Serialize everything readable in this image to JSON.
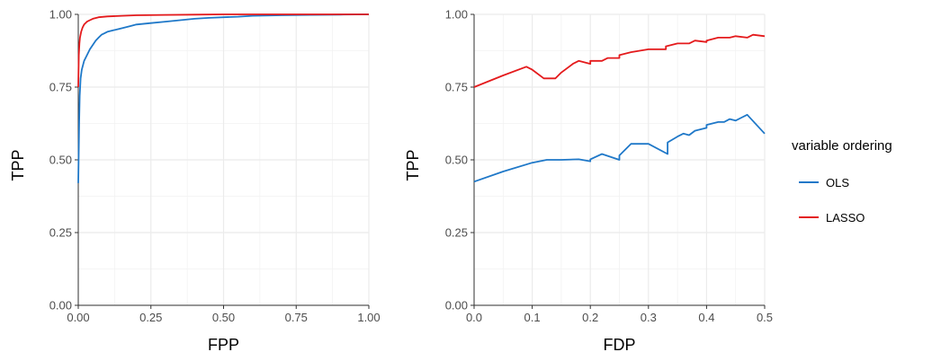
{
  "chart_data": [
    {
      "type": "line",
      "xlabel": "FPP",
      "ylabel": "TPP",
      "xlim": [
        0,
        1
      ],
      "ylim": [
        0,
        1
      ],
      "x_ticks": [
        "0.00",
        "0.25",
        "0.50",
        "0.75",
        "1.00"
      ],
      "y_ticks": [
        "0.00",
        "0.25",
        "0.50",
        "0.75",
        "1.00"
      ],
      "grid": true,
      "series": [
        {
          "name": "OLS",
          "color": "#1f78c8",
          "x": [
            0,
            0.003,
            0.005,
            0.008,
            0.012,
            0.02,
            0.03,
            0.04,
            0.05,
            0.06,
            0.07,
            0.08,
            0.09,
            0.1,
            0.12,
            0.14,
            0.16,
            0.18,
            0.2,
            0.25,
            0.3,
            0.35,
            0.4,
            0.45,
            0.5,
            0.55,
            0.6,
            0.7,
            0.8,
            0.9,
            1.0
          ],
          "y": [
            0.42,
            0.63,
            0.72,
            0.78,
            0.81,
            0.84,
            0.86,
            0.88,
            0.895,
            0.91,
            0.92,
            0.93,
            0.935,
            0.94,
            0.945,
            0.95,
            0.955,
            0.96,
            0.965,
            0.97,
            0.975,
            0.98,
            0.985,
            0.988,
            0.99,
            0.992,
            0.995,
            0.997,
            0.998,
            0.999,
            1.0
          ]
        },
        {
          "name": "LASSO",
          "color": "#e41a1c",
          "x": [
            0,
            0.002,
            0.004,
            0.006,
            0.01,
            0.015,
            0.02,
            0.03,
            0.04,
            0.05,
            0.07,
            0.1,
            0.15,
            0.2,
            0.3,
            0.4,
            0.5,
            0.6,
            0.7,
            1.0
          ],
          "y": [
            0.75,
            0.86,
            0.9,
            0.92,
            0.94,
            0.955,
            0.965,
            0.975,
            0.98,
            0.985,
            0.99,
            0.993,
            0.995,
            0.997,
            0.998,
            0.999,
            1.0,
            1.0,
            1.0,
            1.0
          ]
        }
      ]
    },
    {
      "type": "line",
      "xlabel": "FDP",
      "ylabel": "TPP",
      "xlim": [
        0,
        0.5
      ],
      "ylim": [
        0,
        1
      ],
      "x_ticks": [
        "0.0",
        "0.1",
        "0.2",
        "0.3",
        "0.4",
        "0.5"
      ],
      "y_ticks": [
        "0.00",
        "0.25",
        "0.50",
        "0.75",
        "1.00"
      ],
      "grid": true,
      "series": [
        {
          "name": "OLS",
          "color": "#1f78c8",
          "x": [
            0,
            0.05,
            0.1,
            0.125,
            0.15,
            0.18,
            0.2,
            0.2,
            0.22,
            0.25,
            0.25,
            0.27,
            0.3,
            0.333,
            0.333,
            0.35,
            0.36,
            0.37,
            0.38,
            0.4,
            0.4,
            0.42,
            0.43,
            0.44,
            0.45,
            0.46,
            0.47,
            0.5
          ],
          "y": [
            0.425,
            0.46,
            0.49,
            0.5,
            0.5,
            0.502,
            0.495,
            0.502,
            0.52,
            0.5,
            0.515,
            0.555,
            0.555,
            0.52,
            0.56,
            0.58,
            0.59,
            0.585,
            0.6,
            0.61,
            0.62,
            0.63,
            0.63,
            0.64,
            0.635,
            0.645,
            0.655,
            0.59
          ]
        },
        {
          "name": "LASSO",
          "color": "#e41a1c",
          "x": [
            0,
            0.05,
            0.09,
            0.1,
            0.12,
            0.14,
            0.15,
            0.17,
            0.18,
            0.2,
            0.2,
            0.22,
            0.23,
            0.25,
            0.25,
            0.27,
            0.3,
            0.33,
            0.33,
            0.35,
            0.37,
            0.38,
            0.4,
            0.4,
            0.42,
            0.44,
            0.45,
            0.47,
            0.48,
            0.5
          ],
          "y": [
            0.75,
            0.79,
            0.82,
            0.81,
            0.78,
            0.78,
            0.8,
            0.83,
            0.84,
            0.83,
            0.84,
            0.84,
            0.85,
            0.85,
            0.86,
            0.87,
            0.88,
            0.88,
            0.89,
            0.9,
            0.9,
            0.91,
            0.905,
            0.91,
            0.92,
            0.92,
            0.925,
            0.92,
            0.93,
            0.925
          ]
        }
      ]
    }
  ],
  "legend": {
    "title": "variable ordering",
    "items": [
      {
        "label": "OLS",
        "color": "#1f78c8"
      },
      {
        "label": "LASSO",
        "color": "#e41a1c"
      }
    ]
  }
}
